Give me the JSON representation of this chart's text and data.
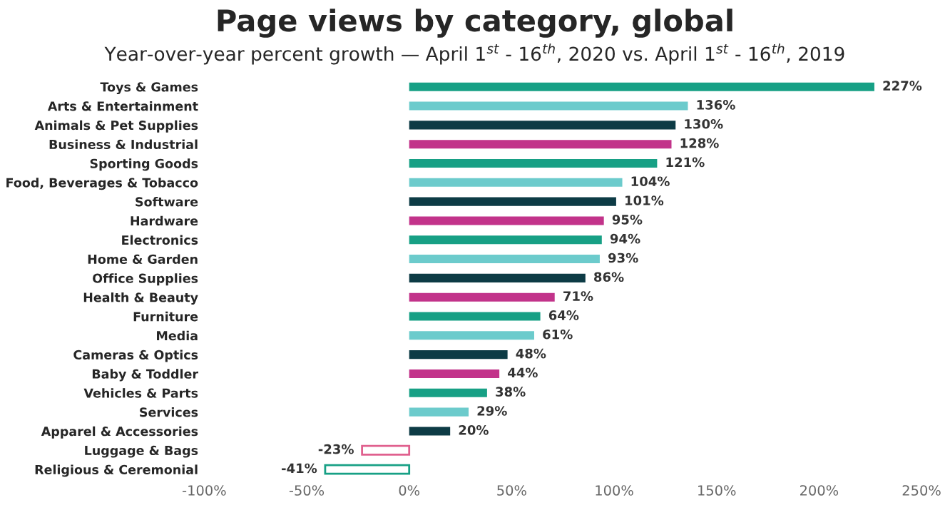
{
  "chart_data": {
    "type": "bar",
    "orientation": "horizontal",
    "title": "Page views by category, global",
    "subtitle": "Year-over-year percent growth — April 1$^{st}$ - 16$^{th}$, 2020 vs. April 1$^{st}$ - 16$^{th}$, 2019",
    "categories": [
      "Toys & Games",
      "Arts & Entertainment",
      "Animals & Pet Supplies",
      "Business & Industrial",
      "Sporting Goods",
      "Food, Beverages & Tobacco",
      "Software",
      "Hardware",
      "Electronics",
      "Home & Garden",
      "Office Supplies",
      "Health & Beauty",
      "Furniture",
      "Media",
      "Cameras & Optics",
      "Baby & Toddler",
      "Vehicles & Parts",
      "Services",
      "Apparel & Accessories",
      "Luggage & Bags",
      "Religious & Ceremonial"
    ],
    "values": [
      227,
      136,
      130,
      128,
      121,
      104,
      101,
      95,
      94,
      93,
      86,
      71,
      64,
      61,
      48,
      44,
      38,
      29,
      20,
      -23,
      -41
    ],
    "value_labels": [
      "227%",
      "136%",
      "130%",
      "128%",
      "121%",
      "104%",
      "101%",
      "95%",
      "94%",
      "93%",
      "86%",
      "71%",
      "64%",
      "61%",
      "48%",
      "44%",
      "38%",
      "29%",
      "20%",
      "-23%",
      "-41%"
    ],
    "colors": [
      "#17a085",
      "#6ccbcc",
      "#0d3b45",
      "#c2338a",
      "#17a085",
      "#6ccbcc",
      "#0d3b45",
      "#c2338a",
      "#17a085",
      "#6ccbcc",
      "#0d3b45",
      "#c2338a",
      "#17a085",
      "#6ccbcc",
      "#0d3b45",
      "#c2338a",
      "#17a085",
      "#6ccbcc",
      "#0d3b45",
      "#e0608e",
      "#17a085"
    ],
    "xlim": [
      -100,
      250
    ],
    "xticks": [
      {
        "value": -100,
        "label": "-100%"
      },
      {
        "value": -50,
        "label": "-50%"
      },
      {
        "value": 0,
        "label": "0%"
      },
      {
        "value": 50,
        "label": "50%"
      },
      {
        "value": 100,
        "label": "100%"
      },
      {
        "value": 150,
        "label": "150%"
      },
      {
        "value": 200,
        "label": "200%"
      },
      {
        "value": 250,
        "label": "250%"
      }
    ],
    "grid": false,
    "legend": false
  }
}
